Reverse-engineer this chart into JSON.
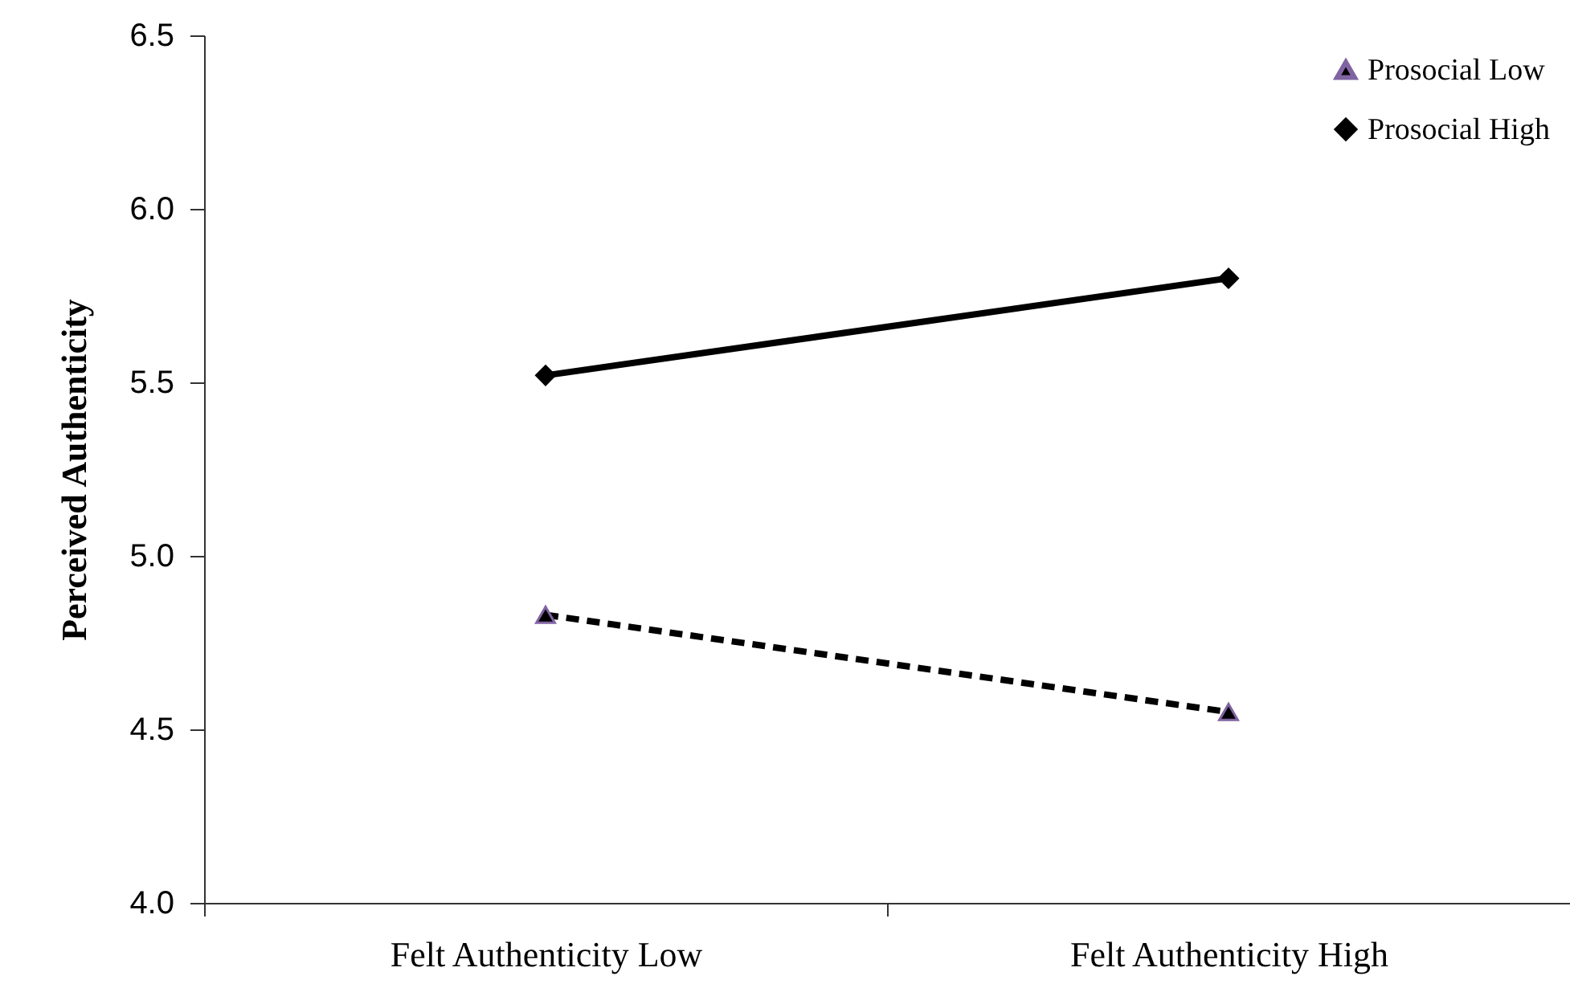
{
  "chart_data": {
    "type": "line",
    "xlabel": null,
    "ylabel": "Perceived Authenticity",
    "categories": [
      "Felt Authenticity Low",
      "Felt Authenticity High"
    ],
    "series": [
      {
        "name": "Prosocial Low",
        "color": "#000000",
        "values": [
          4.83,
          4.55
        ],
        "marker": "triangle",
        "line_style": "dashed"
      },
      {
        "name": "Prosocial High",
        "color": "#000000",
        "values": [
          5.52,
          5.8
        ],
        "marker": "diamond",
        "line_style": "solid"
      }
    ],
    "ylim": [
      4.0,
      6.5
    ],
    "yticks": [
      {
        "value": 4.0,
        "label": "4.0"
      },
      {
        "value": 4.5,
        "label": "4.5"
      },
      {
        "value": 5.0,
        "label": "5.0"
      },
      {
        "value": 5.5,
        "label": "5.5"
      },
      {
        "value": 6.0,
        "label": "6.0"
      },
      {
        "value": 6.5,
        "label": "6.5"
      }
    ],
    "grid": false,
    "legend": "top right"
  }
}
